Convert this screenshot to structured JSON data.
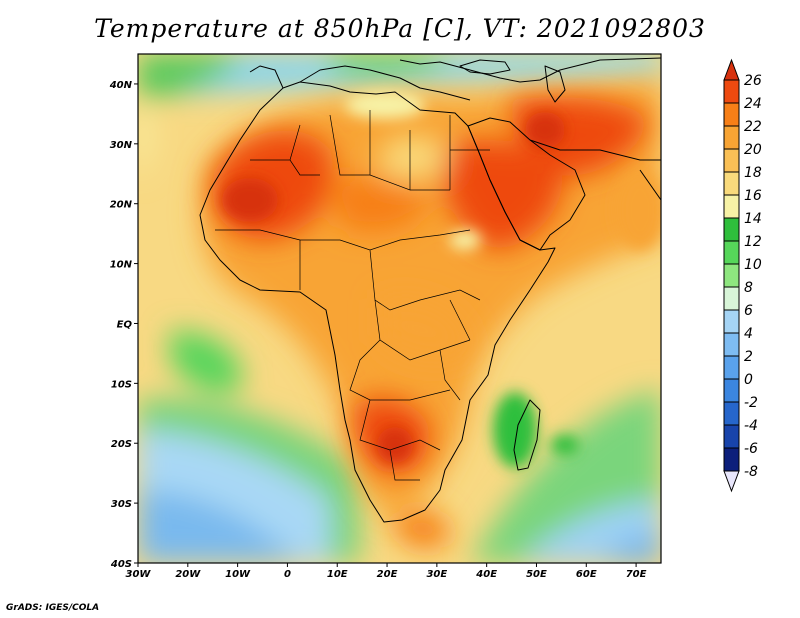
{
  "title": "Temperature at 850hPa [C], VT: 2021092803",
  "credit": "GrADS: IGES/COLA",
  "map": {
    "lon_range": [
      -30,
      75
    ],
    "lat_range": [
      -40,
      45
    ],
    "lon_ticks": [
      {
        "value": -30,
        "label": "30W"
      },
      {
        "value": -20,
        "label": "20W"
      },
      {
        "value": -10,
        "label": "10W"
      },
      {
        "value": 0,
        "label": "0"
      },
      {
        "value": 10,
        "label": "10E"
      },
      {
        "value": 20,
        "label": "20E"
      },
      {
        "value": 30,
        "label": "30E"
      },
      {
        "value": 40,
        "label": "40E"
      },
      {
        "value": 50,
        "label": "50E"
      },
      {
        "value": 60,
        "label": "60E"
      },
      {
        "value": 70,
        "label": "70E"
      }
    ],
    "lat_ticks": [
      {
        "value": 40,
        "label": "40N"
      },
      {
        "value": 30,
        "label": "30N"
      },
      {
        "value": 20,
        "label": "20N"
      },
      {
        "value": 10,
        "label": "10N"
      },
      {
        "value": 0,
        "label": "EQ"
      },
      {
        "value": -10,
        "label": "10S"
      },
      {
        "value": -20,
        "label": "20S"
      },
      {
        "value": -30,
        "label": "30S"
      },
      {
        "value": -40,
        "label": "40S"
      }
    ]
  },
  "colorbar": {
    "levels": [
      "26",
      "24",
      "22",
      "20",
      "18",
      "16",
      "14",
      "12",
      "10",
      "8",
      "6",
      "4",
      "2",
      "0",
      "-2",
      "-4",
      "-6",
      "-8"
    ],
    "colors": [
      "#d7320f",
      "#ee4a10",
      "#f77f17",
      "#f8a434",
      "#fac056",
      "#f9da7c",
      "#f7f2a6",
      "#2fbf3c",
      "#56d65a",
      "#8ee67f",
      "#d8f5d8",
      "#a5d4f5",
      "#7ebcf2",
      "#5aa2ec",
      "#3b86e0",
      "#2666cb",
      "#1844ab",
      "#0c1f7b",
      "#e8e6fb"
    ]
  }
}
